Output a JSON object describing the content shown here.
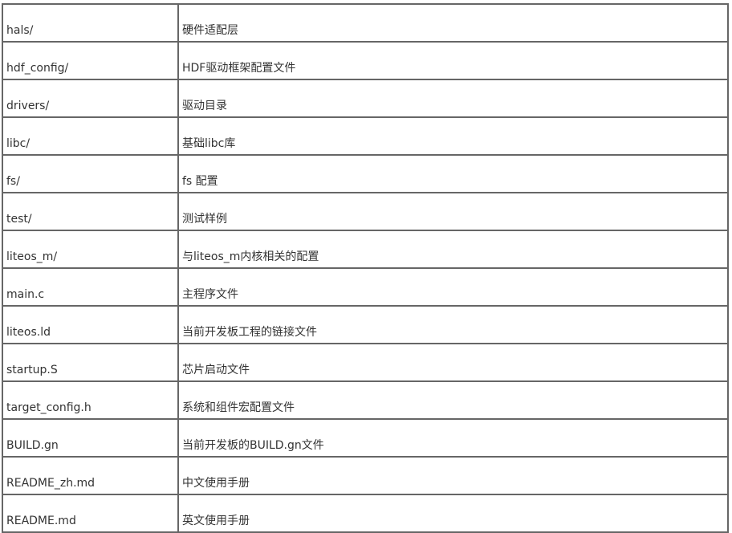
{
  "table": {
    "rows": [
      {
        "name": "hals/",
        "desc": "硬件适配层"
      },
      {
        "name": "hdf_config/",
        "desc": "HDF驱动框架配置文件"
      },
      {
        "name": "drivers/",
        "desc": "驱动目录"
      },
      {
        "name": "libc/",
        "desc": "基础libc库"
      },
      {
        "name": "fs/",
        "desc": "fs 配置"
      },
      {
        "name": "test/",
        "desc": "测试样例"
      },
      {
        "name": "liteos_m/",
        "desc": "与liteos_m内核相关的配置"
      },
      {
        "name": "main.c",
        "desc": "主程序文件"
      },
      {
        "name": "liteos.ld",
        "desc": "当前开发板工程的链接文件"
      },
      {
        "name": "startup.S",
        "desc": "芯片启动文件"
      },
      {
        "name": "target_config.h",
        "desc": "系统和组件宏配置文件"
      },
      {
        "name": "BUILD.gn",
        "desc": "当前开发板的BUILD.gn文件"
      },
      {
        "name": "README_zh.md",
        "desc": "中文使用手册"
      },
      {
        "name": "README.md",
        "desc": "英文使用手册"
      }
    ]
  }
}
